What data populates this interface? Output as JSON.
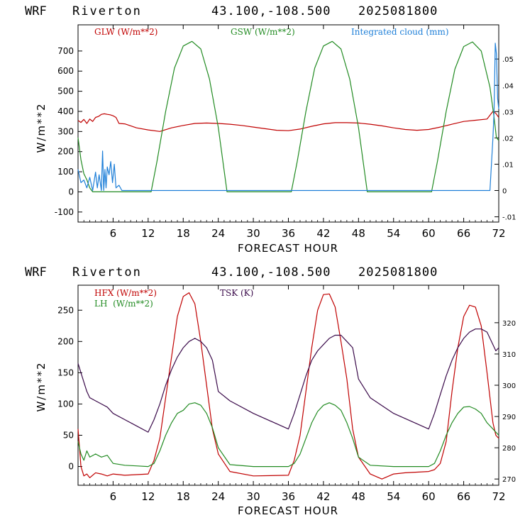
{
  "chart_data": [
    {
      "type": "line",
      "header": {
        "model": "WRF",
        "station": "Riverton",
        "coords": "43.100,-108.500",
        "date": "2025081800"
      },
      "xlabel": "FORECAST HOUR",
      "ylabel": "W/m**2",
      "xlim": [
        0,
        72
      ],
      "ylim": [
        -150,
        830
      ],
      "xticks": [
        6,
        12,
        18,
        24,
        30,
        36,
        42,
        48,
        54,
        60,
        66,
        72
      ],
      "yticks": [
        -100,
        0,
        100,
        200,
        300,
        400,
        500,
        600,
        700
      ],
      "right_axis": {
        "ylim": [
          -0.012,
          0.063
        ],
        "ticks": [
          -0.01,
          0,
          0.01,
          0.02,
          0.03,
          0.04,
          0.05
        ],
        "tick_labels": [
          "-.01",
          "0",
          ".01",
          ".02",
          ".03",
          ".04",
          ".05"
        ]
      },
      "colors": {
        "glw": "#c00000",
        "gsw": "#228b22",
        "cloud": "#1e7fd8"
      },
      "series": [
        {
          "name": "GLW (W/m**2)",
          "axis": "left",
          "color": "#c00000",
          "x": [
            0,
            0.5,
            1,
            1.5,
            2,
            2.5,
            3,
            3.5,
            4,
            4.5,
            5,
            5.5,
            6,
            6.5,
            7,
            8,
            10,
            12,
            14,
            16,
            18,
            20,
            22,
            24,
            26,
            28,
            30,
            32,
            34,
            36,
            38,
            40,
            42,
            44,
            46,
            48,
            50,
            52,
            54,
            56,
            58,
            60,
            62,
            64,
            66,
            68,
            70,
            71,
            71.5,
            72
          ],
          "y": [
            355,
            345,
            360,
            340,
            362,
            350,
            370,
            375,
            385,
            388,
            385,
            383,
            378,
            370,
            340,
            338,
            318,
            308,
            300,
            318,
            330,
            340,
            342,
            340,
            336,
            330,
            322,
            314,
            306,
            304,
            312,
            326,
            338,
            344,
            344,
            342,
            336,
            328,
            318,
            310,
            306,
            310,
            322,
            336,
            350,
            356,
            362,
            400,
            390,
            370
          ]
        },
        {
          "name": "GSW (W/m**2)",
          "axis": "left",
          "color": "#228b22",
          "x": [
            0,
            0.5,
            1,
            1.5,
            2,
            2.5,
            3,
            12.5,
            13.5,
            15,
            16.5,
            18,
            19.5,
            21,
            22.5,
            24,
            25.5,
            36.5,
            37.5,
            39,
            40.5,
            42,
            43.5,
            45,
            46.5,
            48,
            49.5,
            60.5,
            61.5,
            63,
            64.5,
            66,
            67.5,
            69,
            70.5,
            71.2,
            71.6,
            72
          ],
          "y": [
            270,
            160,
            90,
            60,
            20,
            0,
            0,
            0,
            150,
            400,
            615,
            725,
            748,
            710,
            560,
            320,
            0,
            0,
            150,
            400,
            615,
            725,
            748,
            710,
            560,
            320,
            0,
            0,
            150,
            400,
            610,
            722,
            745,
            700,
            520,
            370,
            270,
            255
          ]
        },
        {
          "name": "Integrated cloud (mm)",
          "axis": "right",
          "color": "#1e7fd8",
          "x": [
            0,
            0.5,
            1,
            1.5,
            2,
            2.5,
            3,
            3.3,
            3.6,
            4,
            4.2,
            4.4,
            4.6,
            4.8,
            5,
            5.3,
            5.6,
            5.9,
            6.2,
            6.5,
            7,
            7.5,
            8,
            20,
            40,
            60,
            70.5,
            71,
            71.2,
            71.4,
            71.6,
            71.8,
            72
          ],
          "y": [
            0.008,
            0.003,
            0.004,
            0.001,
            0.005,
            0.0,
            0.007,
            0.001,
            0.006,
            0.0,
            0.015,
            0.0,
            0.008,
            0.001,
            0.009,
            0.006,
            0.011,
            0.003,
            0.01,
            0.001,
            0.002,
            0.0,
            0.0,
            0.0,
            0.0,
            0.0,
            0.0,
            0.02,
            0.03,
            0.056,
            0.052,
            0.035,
            0.031
          ]
        }
      ]
    },
    {
      "type": "line",
      "header": {
        "model": "WRF",
        "station": "Riverton",
        "coords": "43.100,-108.500",
        "date": "2025081800"
      },
      "xlabel": "FORECAST HOUR",
      "ylabel": "W/m**2",
      "xlim": [
        0,
        72
      ],
      "ylim": [
        -30,
        290
      ],
      "xticks": [
        6,
        12,
        18,
        24,
        30,
        36,
        42,
        48,
        54,
        60,
        66,
        72
      ],
      "yticks": [
        0,
        50,
        100,
        150,
        200,
        250
      ],
      "right_axis": {
        "ylim": [
          268,
          332
        ],
        "ticks": [
          270,
          280,
          290,
          300,
          310,
          320
        ],
        "tick_labels": [
          "270",
          "280",
          "290",
          "300",
          "310",
          "320"
        ]
      },
      "colors": {
        "hfx": "#c00000",
        "lh": "#228b22",
        "tsk": "#3a0a4a"
      },
      "series": [
        {
          "name": "HFX (W/m**2)",
          "axis": "left",
          "color": "#c00000",
          "x": [
            0,
            0.5,
            1,
            1.5,
            2,
            3,
            4,
            5,
            6,
            8,
            10,
            12,
            13,
            14,
            15,
            16,
            17,
            18,
            19,
            20,
            21,
            22,
            23,
            24,
            26,
            30,
            36,
            37,
            38,
            39,
            40,
            41,
            42,
            43,
            44,
            45,
            46,
            47,
            48,
            50,
            52,
            54,
            56,
            60,
            61,
            62,
            63,
            64,
            65,
            66,
            67,
            68,
            69,
            70,
            71,
            71.5,
            72
          ],
          "y": [
            60,
            0,
            -15,
            -12,
            -18,
            -10,
            -12,
            -15,
            -12,
            -14,
            -13,
            -12,
            10,
            45,
            110,
            175,
            240,
            272,
            278,
            260,
            200,
            130,
            60,
            20,
            -8,
            -15,
            -14,
            10,
            50,
            120,
            190,
            250,
            275,
            276,
            255,
            200,
            140,
            60,
            15,
            -12,
            -20,
            -12,
            -10,
            -8,
            -5,
            5,
            40,
            120,
            190,
            240,
            258,
            255,
            225,
            150,
            70,
            50,
            45
          ]
        },
        {
          "name": "LH (W/m**2)",
          "axis": "left",
          "color": "#228b22",
          "x": [
            0,
            0.5,
            1,
            1.5,
            2,
            3,
            4,
            5,
            6,
            8,
            10,
            12,
            13,
            14,
            15,
            16,
            17,
            18,
            19,
            20,
            21,
            22,
            23,
            24,
            26,
            30,
            36,
            37,
            38,
            39,
            40,
            41,
            42,
            43,
            44,
            45,
            46,
            47,
            48,
            50,
            54,
            60,
            61,
            62,
            63,
            64,
            65,
            66,
            67,
            68,
            69,
            70,
            71,
            72
          ],
          "y": [
            40,
            20,
            10,
            25,
            15,
            20,
            15,
            18,
            5,
            2,
            1,
            0,
            5,
            25,
            50,
            70,
            85,
            90,
            100,
            102,
            98,
            85,
            62,
            30,
            3,
            0,
            0,
            5,
            20,
            45,
            70,
            88,
            98,
            102,
            98,
            90,
            70,
            45,
            15,
            2,
            0,
            0,
            5,
            25,
            50,
            70,
            85,
            95,
            96,
            92,
            85,
            70,
            60,
            50
          ]
        },
        {
          "name": "TSK (K)",
          "axis": "right",
          "color": "#3a0a4a",
          "x": [
            0,
            0.5,
            1,
            1.5,
            2,
            3,
            4,
            5,
            6,
            8,
            10,
            12,
            13,
            14,
            15,
            16,
            17,
            18,
            19,
            20,
            21,
            22,
            23,
            24,
            26,
            30,
            36,
            37,
            38,
            39,
            40,
            41,
            42,
            43,
            44,
            45,
            46,
            47,
            48,
            50,
            54,
            60,
            61,
            62,
            63,
            64,
            65,
            66,
            67,
            68,
            69,
            70,
            71,
            71.5,
            72
          ],
          "y": [
            307,
            304,
            301,
            298,
            296,
            295,
            294,
            293,
            291,
            289,
            287,
            285,
            289,
            294,
            300,
            305,
            309,
            312,
            314,
            315,
            314,
            312,
            308,
            298,
            295,
            291,
            286,
            291,
            297,
            303,
            308,
            311,
            313,
            315,
            316,
            316,
            314,
            312,
            302,
            296,
            291,
            286,
            291,
            297,
            303,
            308,
            312,
            315,
            317,
            318,
            318,
            317,
            313,
            311,
            312
          ]
        }
      ]
    }
  ],
  "panels": [
    {
      "header": {
        "model": "WRF",
        "station": "Riverton",
        "coords": "43.100,-108.500",
        "date": "2025081800"
      },
      "legend": [
        "GLW (W/m**2)",
        "GSW (W/m**2)",
        "Integrated cloud (mm)"
      ],
      "ylabel": "W/m**2",
      "xlabel": "FORECAST HOUR"
    },
    {
      "header": {
        "model": "WRF",
        "station": "Riverton",
        "coords": "43.100,-108.500",
        "date": "2025081800"
      },
      "legend": [
        "HFX (W/m**2)",
        "LH  (W/m**2)",
        "TSK (K)"
      ],
      "ylabel": "W/m**2",
      "xlabel": "FORECAST HOUR"
    }
  ]
}
